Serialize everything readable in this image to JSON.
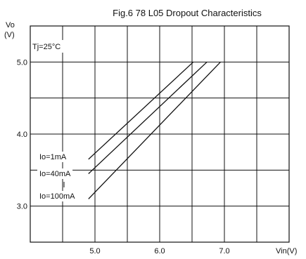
{
  "chart_data": {
    "type": "line",
    "title": "Fig.6 78 L05 Dropout Characteristics",
    "xlabel": "Vin(V)",
    "ylabel_line1": "Vo",
    "ylabel_line2": "(V)",
    "annotation": "Tj=25°C",
    "xlim": [
      4.0,
      8.0
    ],
    "ylim": [
      2.5,
      5.5
    ],
    "x_ticks": [
      {
        "value": 5.0,
        "label": "5.0"
      },
      {
        "value": 6.0,
        "label": "6.0"
      },
      {
        "value": 7.0,
        "label": "7.0"
      }
    ],
    "y_ticks": [
      {
        "value": 3.0,
        "label": "3.0"
      },
      {
        "value": 4.0,
        "label": "4.0"
      },
      {
        "value": 5.0,
        "label": "5.0"
      }
    ],
    "grid": true,
    "series": [
      {
        "name": "Io=1mA",
        "x": [
          4.9,
          6.52
        ],
        "y": [
          3.65,
          5.0
        ]
      },
      {
        "name": "Io=40mA",
        "x": [
          4.9,
          6.73
        ],
        "y": [
          3.45,
          5.0
        ]
      },
      {
        "name": "Io=100mA",
        "x": [
          4.9,
          6.94
        ],
        "y": [
          3.1,
          5.0
        ]
      }
    ]
  }
}
